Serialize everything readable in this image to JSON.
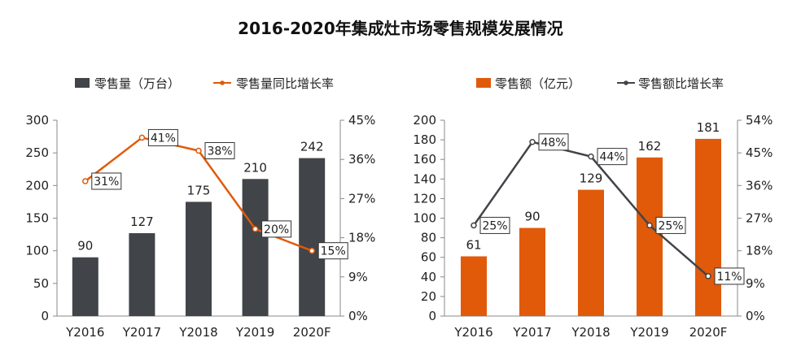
{
  "title": "2016-2020年集成灶市场零售规模发展情况",
  "chart_data": [
    {
      "type": "bar+line",
      "categories": [
        "Y2016",
        "Y2017",
        "Y2018",
        "Y2019",
        "2020F"
      ],
      "bar_series": {
        "name": "零售量（万台）",
        "values": [
          90,
          127,
          175,
          210,
          242
        ],
        "color": "#414448"
      },
      "line_series": {
        "name": "零售量同比增长率",
        "values": [
          31,
          41,
          38,
          20,
          15
        ],
        "labels": [
          "31%",
          "41%",
          "38%",
          "20%",
          "15%"
        ],
        "color": "#e05a0a"
      },
      "y_left": {
        "min": 0,
        "max": 300,
        "ticks": [
          "0",
          "50",
          "100",
          "150",
          "200",
          "250",
          "300"
        ]
      },
      "y_right": {
        "min": 0,
        "max": 45,
        "ticks": [
          "0%",
          "9%",
          "18%",
          "27%",
          "36%",
          "45%"
        ]
      },
      "legend_position": "top"
    },
    {
      "type": "bar+line",
      "categories": [
        "Y2016",
        "Y2017",
        "Y2018",
        "Y2019",
        "2020F"
      ],
      "bar_series": {
        "name": "零售额（亿元）",
        "values": [
          61,
          90,
          129,
          162,
          181
        ],
        "color": "#e05a0a"
      },
      "line_series": {
        "name": "零售额比增长率",
        "values": [
          25,
          48,
          44,
          25,
          11
        ],
        "labels": [
          "25%",
          "48%",
          "44%",
          "25%",
          "11%"
        ],
        "color": "#414448"
      },
      "y_left": {
        "min": 0,
        "max": 200,
        "ticks": [
          "0",
          "20",
          "40",
          "60",
          "80",
          "100",
          "120",
          "140",
          "160",
          "180",
          "200"
        ]
      },
      "y_right": {
        "min": 0,
        "max": 54,
        "ticks": [
          "0%",
          "9%",
          "18%",
          "27%",
          "36%",
          "45%",
          "54%"
        ]
      },
      "legend_position": "top"
    }
  ]
}
